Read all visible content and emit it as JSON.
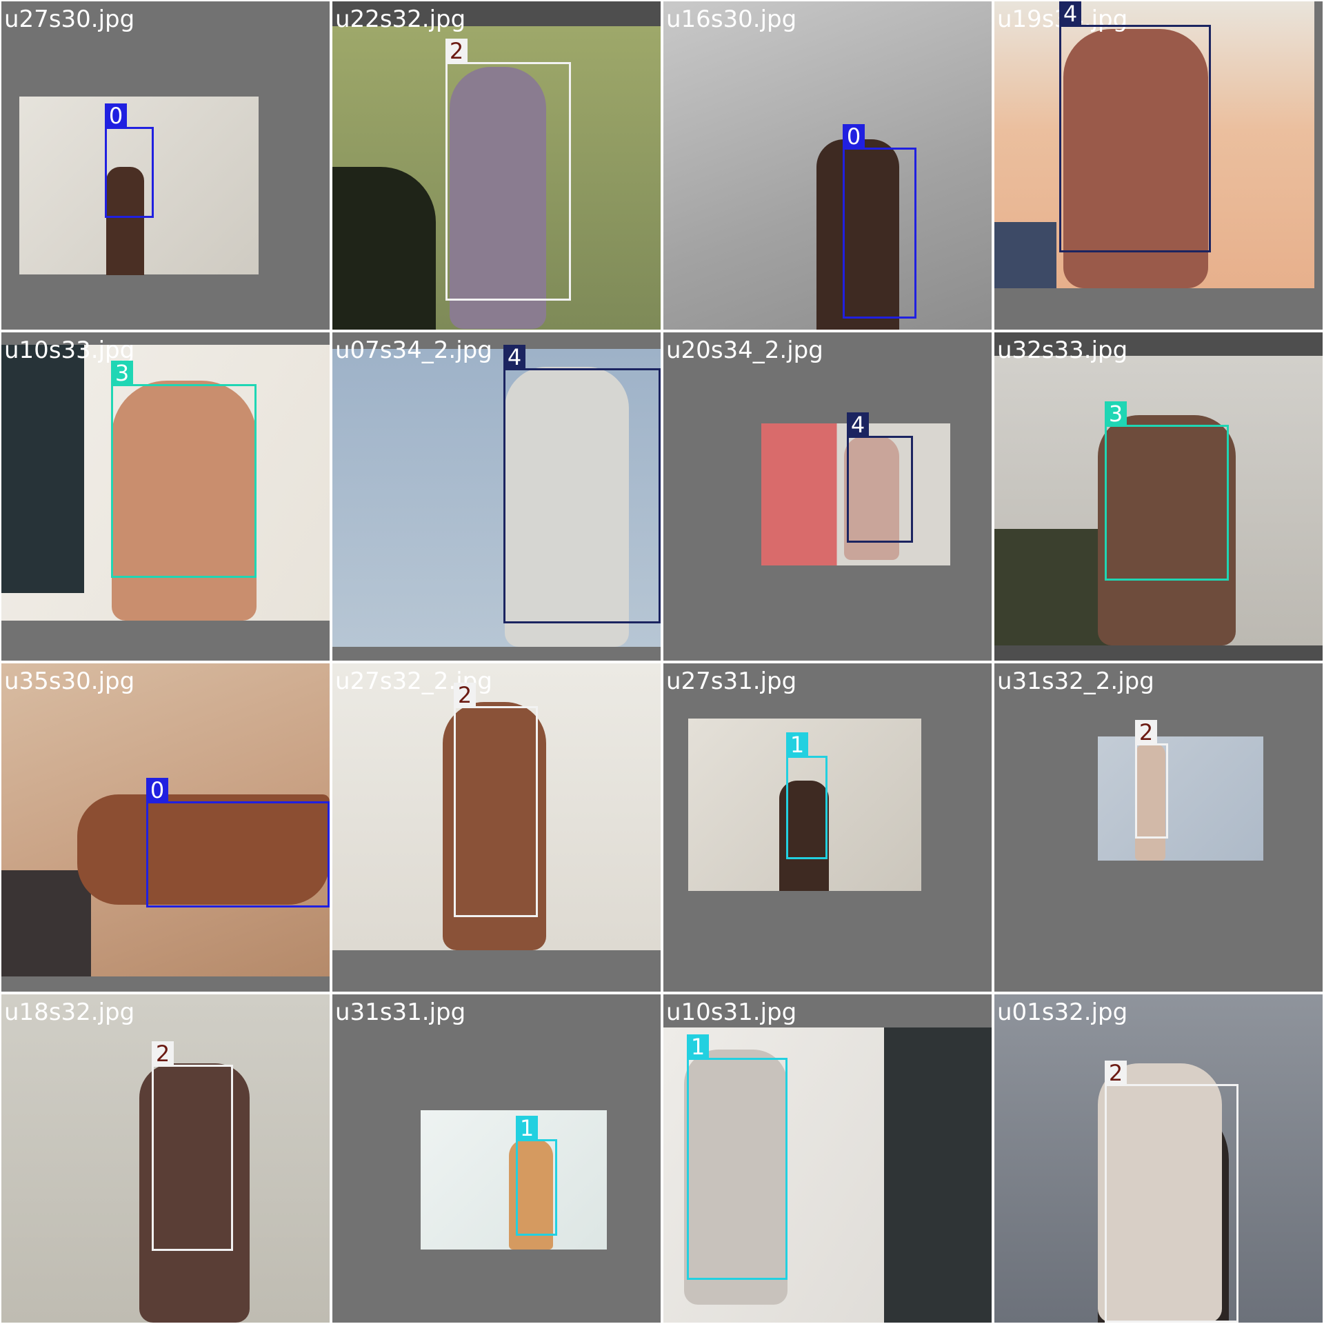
{
  "tiles": [
    {
      "file": "u27s30.jpg",
      "label": "0",
      "box_color": "#2020e0",
      "tag_text_color": "#ffffff"
    },
    {
      "file": "u22s32.jpg",
      "label": "2",
      "box_color": "#f2f2f2",
      "tag_text_color": "#6b1a12"
    },
    {
      "file": "u16s30.jpg",
      "label": "0",
      "box_color": "#2020e0",
      "tag_text_color": "#ffffff"
    },
    {
      "file": "u19s34.jpg",
      "label": "4",
      "box_color": "#1b2460",
      "tag_text_color": "#ffffff"
    },
    {
      "file": "u10s33.jpg",
      "label": "3",
      "box_color": "#1fd6b4",
      "tag_text_color": "#ffffff"
    },
    {
      "file": "u07s34_2.jpg",
      "label": "4",
      "box_color": "#1b2460",
      "tag_text_color": "#ffffff"
    },
    {
      "file": "u20s34_2.jpg",
      "label": "4",
      "box_color": "#1b2460",
      "tag_text_color": "#ffffff"
    },
    {
      "file": "u32s33.jpg",
      "label": "3",
      "box_color": "#1fd6b4",
      "tag_text_color": "#ffffff"
    },
    {
      "file": "u35s30.jpg",
      "label": "0",
      "box_color": "#2020e0",
      "tag_text_color": "#ffffff"
    },
    {
      "file": "u27s32_2.jpg",
      "label": "2",
      "box_color": "#f2f2f2",
      "tag_text_color": "#6b1a12"
    },
    {
      "file": "u27s31.jpg",
      "label": "1",
      "box_color": "#22d0e0",
      "tag_text_color": "#ffffff"
    },
    {
      "file": "u31s32_2.jpg",
      "label": "2",
      "box_color": "#f2f2f2",
      "tag_text_color": "#6b1a12"
    },
    {
      "file": "u18s32.jpg",
      "label": "2",
      "box_color": "#f2f2f2",
      "tag_text_color": "#6b1a12"
    },
    {
      "file": "u31s31.jpg",
      "label": "1",
      "box_color": "#22d0e0",
      "tag_text_color": "#ffffff"
    },
    {
      "file": "u10s31.jpg",
      "label": "1",
      "box_color": "#22d0e0",
      "tag_text_color": "#ffffff"
    },
    {
      "file": "u01s32.jpg",
      "label": "2",
      "box_color": "#f2f2f2",
      "tag_text_color": "#6b1a12"
    }
  ]
}
